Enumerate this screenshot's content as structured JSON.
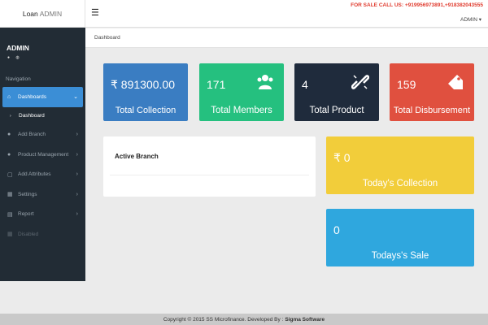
{
  "brand": {
    "part1": "Loan",
    "part2": "ADMIN"
  },
  "topbar": {
    "menu_icon": "☰",
    "sale_text": "FOR SALE CALL US: +919956973891,+918382043555",
    "admin_label": "ADMIN ▾"
  },
  "sidebar": {
    "user_name": "ADMIN",
    "status_icons": "● ◍",
    "nav_label": "Navigation",
    "items": [
      {
        "label": "Dashboards",
        "icon": "home-icon",
        "glyph": "⌂",
        "active": true
      },
      {
        "label": "Dashboard",
        "icon": "bullet-icon",
        "glyph": "›",
        "sub": true
      },
      {
        "label": "Add Branch",
        "icon": "user-icon",
        "glyph": "●"
      },
      {
        "label": "Product Management",
        "icon": "user-icon",
        "glyph": "●"
      },
      {
        "label": "Add Attributes",
        "icon": "edit-icon",
        "glyph": "▢"
      },
      {
        "label": "Settings",
        "icon": "table-icon",
        "glyph": "▦"
      },
      {
        "label": "Report",
        "icon": "chart-icon",
        "glyph": "▤"
      },
      {
        "label": "Disabled",
        "icon": "grid-icon",
        "glyph": "▦",
        "disabled": true
      }
    ]
  },
  "breadcrumb": "Dashboard",
  "cards": {
    "collection": {
      "value": "₹ 891300.00",
      "label": "Total Collection"
    },
    "members": {
      "value": "171",
      "label": "Total Members",
      "icon": "users-icon",
      "glyph": "👥"
    },
    "product": {
      "value": "4",
      "label": "Total Product",
      "icon": "chain-link-icon",
      "glyph": "⛓"
    },
    "disbursement": {
      "value": "159",
      "label": "Total Disbursement",
      "icon": "tag-icon",
      "glyph": "🏷"
    },
    "today_collection": {
      "value": "₹ 0",
      "label": "Today's Collection"
    },
    "today_sale": {
      "value": "0",
      "label": "Todays's Sale"
    }
  },
  "panel": {
    "title": "Active Branch"
  },
  "footer": {
    "text": "Copyright © 2015 SS Microfinance. Developed By :",
    "developer": "Sigma Software"
  },
  "colors": {
    "sidebar_bg": "#222c35",
    "active_blue": "#3b8ed6",
    "card_blue": "#3a7dc2",
    "card_green": "#25c07f",
    "card_dark": "#1f2b3c",
    "card_red": "#e0503f",
    "card_yellow": "#f2cd3a",
    "card_lightblue": "#2fa7de",
    "sale_red": "#e03b2e"
  }
}
